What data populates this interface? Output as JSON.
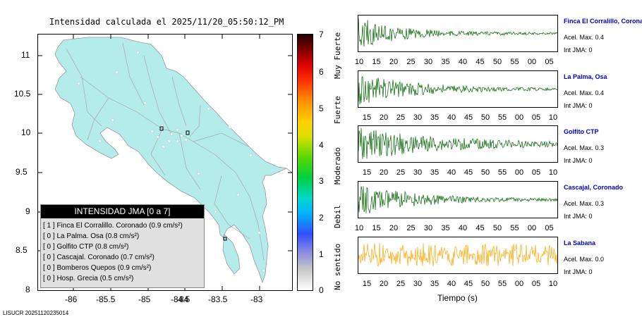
{
  "map": {
    "title": "Intensidad calculada el 2025/11/20_05:50:12_PM",
    "y_ticks": [
      "11",
      "10.5",
      "10",
      "9.5",
      "9",
      "8.5",
      "8"
    ],
    "x_ticks": [
      "-86",
      "-85.5",
      "-85",
      "-84.5",
      "-84",
      "-83.5",
      "-83"
    ],
    "land_color": "#b4ecec"
  },
  "legend": {
    "header": "INTENSIDAD JMA [0 a 7]",
    "rows": [
      "[ 1 ]  Finca El Corralillo. Coronado (0.9 cm/s²)",
      "[ 0 ]  La Palma. Osa (0.8 cm/s²)",
      "[ 0 ]  Golfito CTP (0.8 cm/s²)",
      "[ 0 ]  Cascajal. Coronado (0.7 cm/s²)",
      "[ 0 ]  Bomberos Quepos (0.9 cm/s²)",
      "[ 0 ]  Hosp. Grecia (0.5 cm/s²)"
    ]
  },
  "colorbar": {
    "ticks": [
      "7",
      "6",
      "5",
      "4",
      "3",
      "2",
      "1",
      "0"
    ],
    "labels": [
      "Muy Fuerte",
      "Fuerte",
      "Moderado",
      "Debil",
      "No sentido"
    ]
  },
  "traces": [
    {
      "name": "Finca El Corralillo, Coronado",
      "acel": "Acel. Max. 0.4",
      "jma": "Int JMA: 0",
      "color": "#006400",
      "ticks": [
        "10",
        "15",
        "20",
        "25",
        "30",
        "35",
        "40",
        "45",
        "50",
        "55",
        "00",
        "05"
      ]
    },
    {
      "name": "La Palma, Osa",
      "acel": "Acel. Max. 0.4",
      "jma": "Int JMA: 0",
      "color": "#006400",
      "ticks": [
        "15",
        "20",
        "25",
        "30",
        "35",
        "40",
        "45",
        "50",
        "55",
        "00",
        "05",
        "10"
      ]
    },
    {
      "name": "Golfito CTP",
      "acel": "Acel. Max. 0.3",
      "jma": "Int JMA: 0",
      "color": "#006400",
      "ticks": [
        "15",
        "20",
        "25",
        "30",
        "35",
        "40",
        "45",
        "50",
        "55",
        "00",
        "05",
        "10"
      ]
    },
    {
      "name": "Cascajal, Coronado",
      "acel": "Acel. Max. 0.3",
      "jma": "Int JMA: 0",
      "color": "#006400",
      "ticks": [
        "10",
        "15",
        "20",
        "25",
        "30",
        "35",
        "40",
        "45",
        "50",
        "55",
        "00",
        "05"
      ]
    },
    {
      "name": "La Sabana",
      "acel": "Acel. Max. 0.0",
      "jma": "Int JMA: 0",
      "color": "#ffa500",
      "ticks": [
        "15",
        "20",
        "25",
        "30",
        "35",
        "40",
        "45",
        "50",
        "55",
        "00",
        "05",
        "10"
      ]
    }
  ],
  "time_label": "Tiempo (s)",
  "footer": "LISUCR 20251120235014"
}
